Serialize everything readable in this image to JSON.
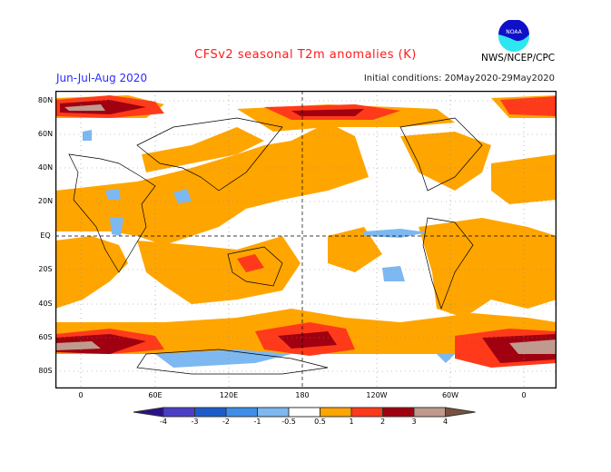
{
  "header": {
    "title": "CFSv2 seasonal T2m anomalies (K)",
    "season": "Jun-Jul-Aug 2020",
    "initial_conditions": "Initial conditions: 20May2020-29May2020",
    "agency": "NWS/NCEP/CPC",
    "logo_text": "NOAA"
  },
  "map": {
    "variable": "T2m anomaly (K)",
    "projection": "cylindrical equidistant, centered near 180",
    "lat_labels": [
      "80N",
      "60N",
      "40N",
      "20N",
      "EQ",
      "20S",
      "40S",
      "60S",
      "80S"
    ],
    "lon_labels": [
      "0",
      "60E",
      "120E",
      "180",
      "120W",
      "60W",
      "0"
    ],
    "grid": "dotted"
  },
  "colorbar": {
    "labels": [
      "-4",
      "-3",
      "-2",
      "-1",
      "-0.5",
      "0.5",
      "1",
      "2",
      "3",
      "4"
    ],
    "colors": [
      "#2a108c",
      "#4a3ec8",
      "#1a5ccc",
      "#3d8ee8",
      "#7db8f0",
      "#ffffff",
      "#ffa500",
      "#ff3a1a",
      "#a00010",
      "#c09a8e",
      "#7a5040"
    ]
  }
}
